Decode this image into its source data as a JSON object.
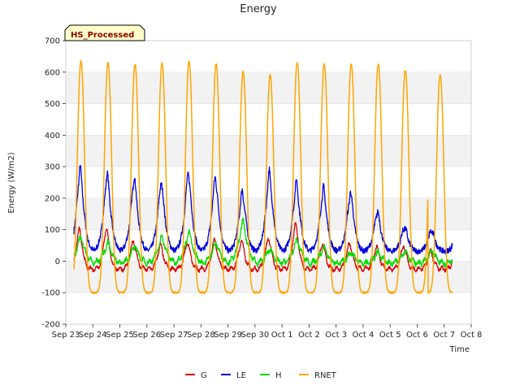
{
  "chart_data": {
    "type": "line",
    "title": "Energy",
    "xlabel": "Time",
    "ylabel": "Energy (W/m2)",
    "ylim": [
      -200,
      700
    ],
    "yticks": [
      -200,
      -100,
      0,
      100,
      200,
      300,
      400,
      500,
      600,
      700
    ],
    "xlim": [
      0,
      15
    ],
    "xticks": [
      "Sep 23",
      "Sep 24",
      "Sep 25",
      "Sep 26",
      "Sep 27",
      "Sep 28",
      "Sep 29",
      "Sep 30",
      "Oct 1",
      "Oct 2",
      "Oct 3",
      "Oct 4",
      "Oct 5",
      "Oct 6",
      "Oct 7",
      "Oct 8"
    ],
    "grid": true,
    "annotation": "HS_Processed",
    "legend": {
      "placement": "bottom-center",
      "entries": [
        "G",
        "LE",
        "H",
        "RNET"
      ]
    },
    "series": [
      {
        "name": "G",
        "color": "#dd0000",
        "night": -25,
        "peaks": [
          100,
          105,
          65,
          50,
          60,
          65,
          65,
          75,
          120,
          55,
          55,
          45,
          50,
          30,
          100
        ]
      },
      {
        "name": "LE",
        "color": "#0000dd",
        "night": 30,
        "peaks": [
          300,
          280,
          270,
          255,
          285,
          270,
          225,
          285,
          255,
          235,
          220,
          160,
          110,
          100,
          110
        ]
      },
      {
        "name": "H",
        "color": "#00dd00",
        "night": -10,
        "peaks": [
          80,
          60,
          50,
          80,
          95,
          60,
          130,
          40,
          70,
          45,
          30,
          30,
          35,
          30,
          40
        ]
      },
      {
        "name": "RNET",
        "color": "#ffa500",
        "night": -100,
        "peaks": [
          635,
          630,
          625,
          628,
          633,
          625,
          600,
          590,
          630,
          625,
          625,
          625,
          605,
          590,
          0
        ]
      }
    ]
  }
}
